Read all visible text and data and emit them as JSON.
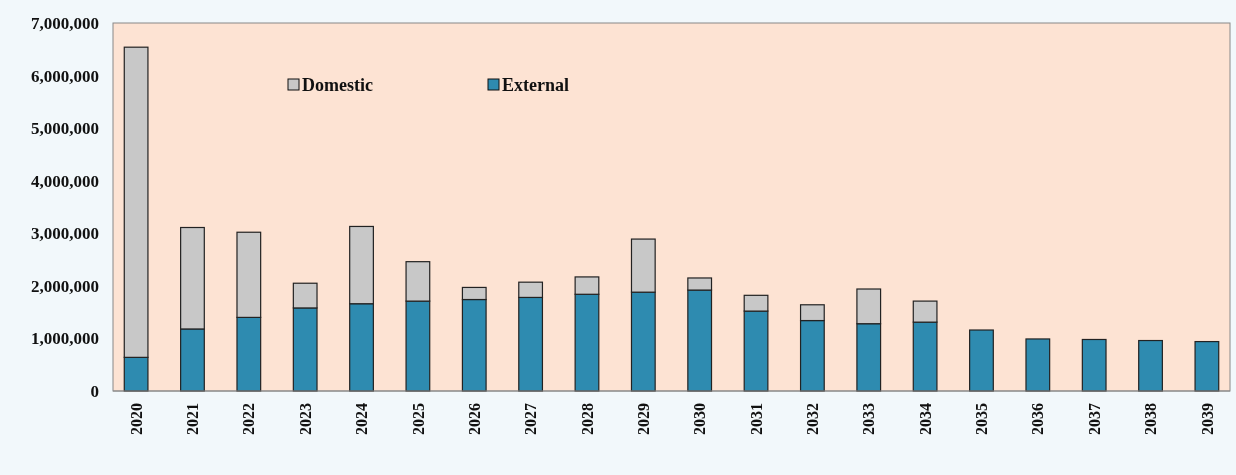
{
  "chart_data": {
    "type": "bar",
    "stacked": true,
    "categories": [
      "2020",
      "2021",
      "2022",
      "2023",
      "2024",
      "2025",
      "2026",
      "2027",
      "2028",
      "2029",
      "2030",
      "2031",
      "2032",
      "2033",
      "2034",
      "2035",
      "2036",
      "2037",
      "2038",
      "2039"
    ],
    "series": [
      {
        "name": "External",
        "color": "#2e8bb0",
        "values": [
          640000,
          1180000,
          1400000,
          1580000,
          1660000,
          1710000,
          1740000,
          1780000,
          1840000,
          1880000,
          1920000,
          1520000,
          1340000,
          1280000,
          1310000,
          1160000,
          990000,
          980000,
          960000,
          940000
        ]
      },
      {
        "name": "Domestic",
        "color": "#c8c8c8",
        "values": [
          5900000,
          1930000,
          1620000,
          470000,
          1470000,
          750000,
          230000,
          290000,
          330000,
          1010000,
          230000,
          300000,
          300000,
          660000,
          400000,
          0,
          0,
          0,
          0,
          0
        ]
      }
    ],
    "ylim": [
      0,
      7000000
    ],
    "yticks": [
      {
        "value": 0,
        "label": "0"
      },
      {
        "value": 1000000,
        "label": "1,000,000"
      },
      {
        "value": 2000000,
        "label": "2,000,000"
      },
      {
        "value": 3000000,
        "label": "3,000,000"
      },
      {
        "value": 4000000,
        "label": "4,000,000"
      },
      {
        "value": 5000000,
        "label": "5,000,000"
      },
      {
        "value": 6000000,
        "label": "6,000,000"
      },
      {
        "value": 7000000,
        "label": "7,000,000"
      }
    ],
    "legend": "top left",
    "grid": false
  }
}
